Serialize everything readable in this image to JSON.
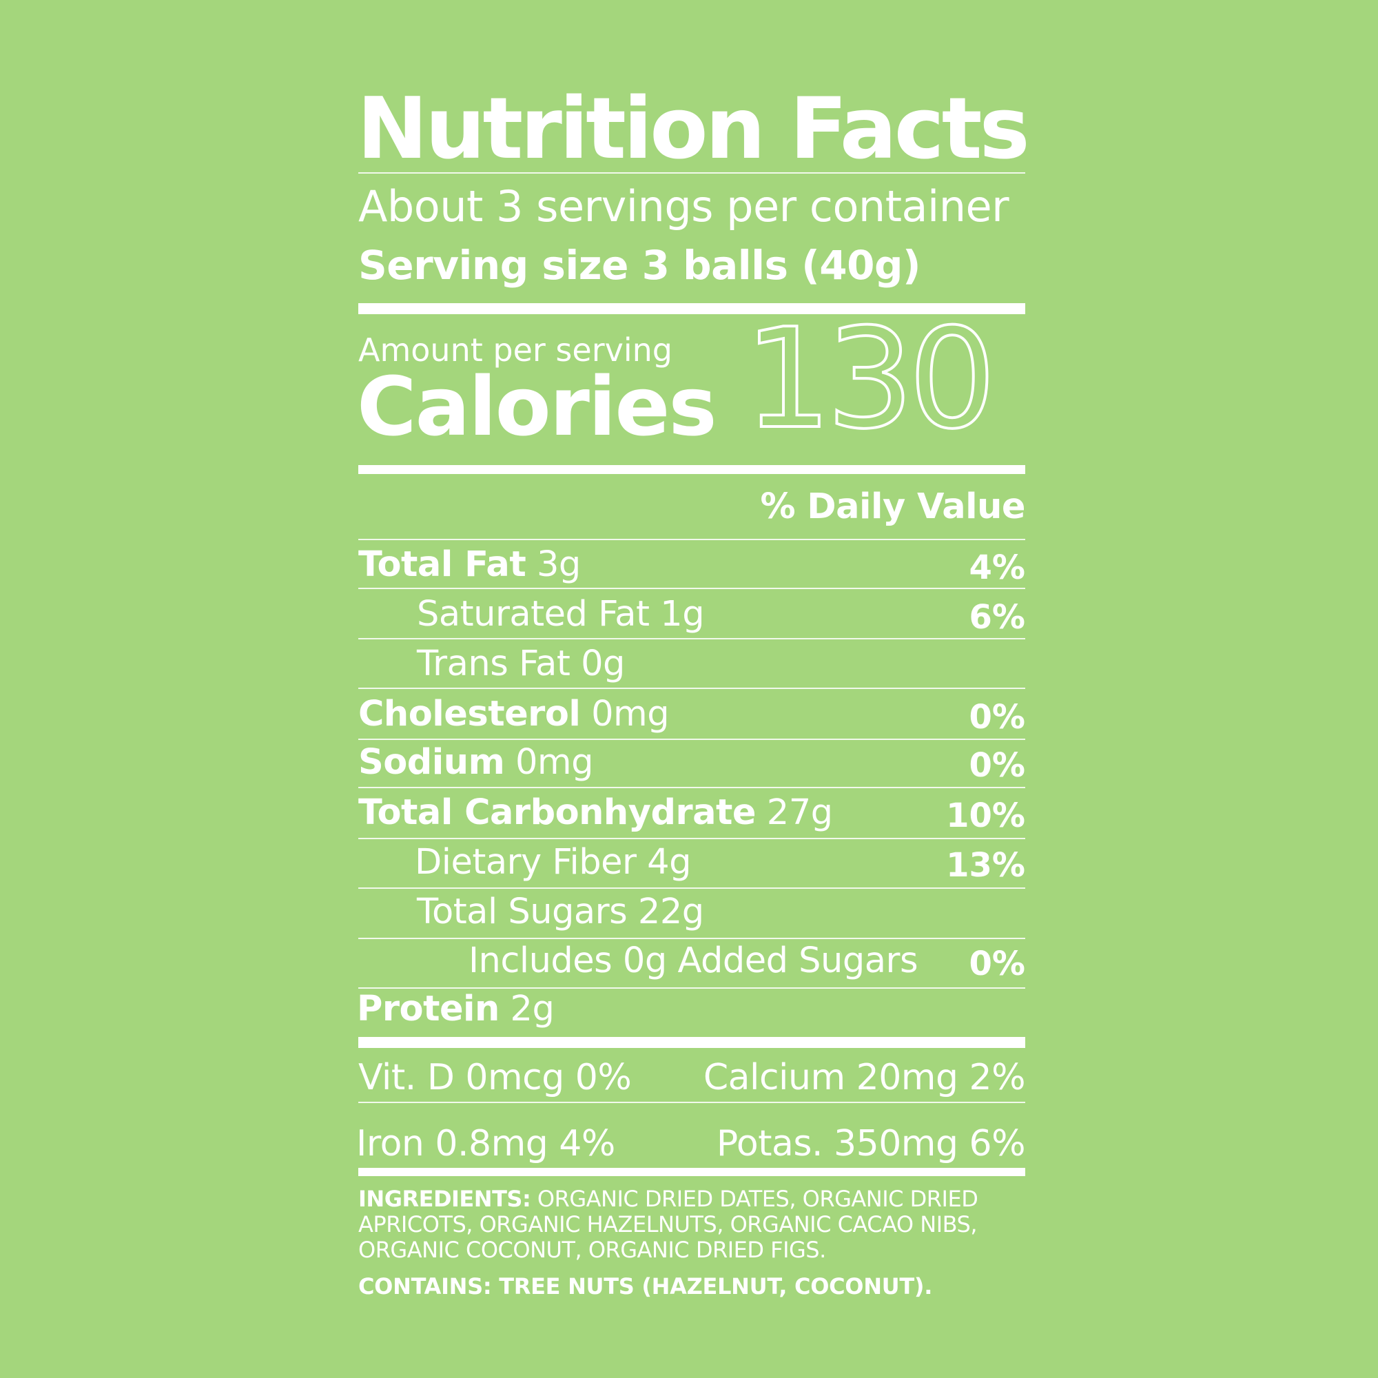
{
  "label": {
    "title": "Nutrition Facts",
    "servings_per_container": "About 3 servings per container",
    "serving_size": "Serving size 3 balls (40g)",
    "amount_per_serving": "Amount per serving",
    "calories_label": "Calories",
    "calories_value": "130",
    "daily_value_header": "% Daily Value"
  },
  "nutrients": [
    {
      "name": "Total Fat",
      "amount": "3g",
      "dv": "4%"
    },
    {
      "name": "Saturated Fat",
      "amount": "1g",
      "dv": "6%"
    },
    {
      "name": "Trans Fat",
      "amount": "0g",
      "dv": ""
    },
    {
      "name": "Cholesterol",
      "amount": "0mg",
      "dv": "0%"
    },
    {
      "name": "Sodium",
      "amount": "0mg",
      "dv": "0%"
    },
    {
      "name": "Total Carbonhydrate",
      "amount": "27g",
      "dv": "10%"
    },
    {
      "name": "Dietary Fiber",
      "amount": "4g",
      "dv": "13%"
    },
    {
      "name": "Total Sugars",
      "amount": "22g",
      "dv": ""
    },
    {
      "name": "Includes 0g Added Sugars",
      "amount": "",
      "dv": "0%"
    },
    {
      "name": "Protein",
      "amount": "2g",
      "dv": ""
    }
  ],
  "vitamins": {
    "vit_d": "Vit. D 0mcg 0%",
    "calcium": "Calcium 20mg 2%",
    "iron": "Iron 0.8mg 4%",
    "potassium": "Potas. 350mg 6%"
  },
  "ingredients": {
    "heading": "INGREDIENTS:",
    "text": "ORGANIC DRIED DATES, ORGANIC DRIED APRICOTS, ORGANIC HAZELNUTS, ORGANIC CACAO NIBS, ORGANIC COCONUT, ORGANIC DRIED FIGS."
  },
  "contains": "CONTAINS: TREE NUTS (HAZELNUT, COCONUT).",
  "colors": {
    "background": "#a4d67c",
    "text": "#ffffff"
  }
}
